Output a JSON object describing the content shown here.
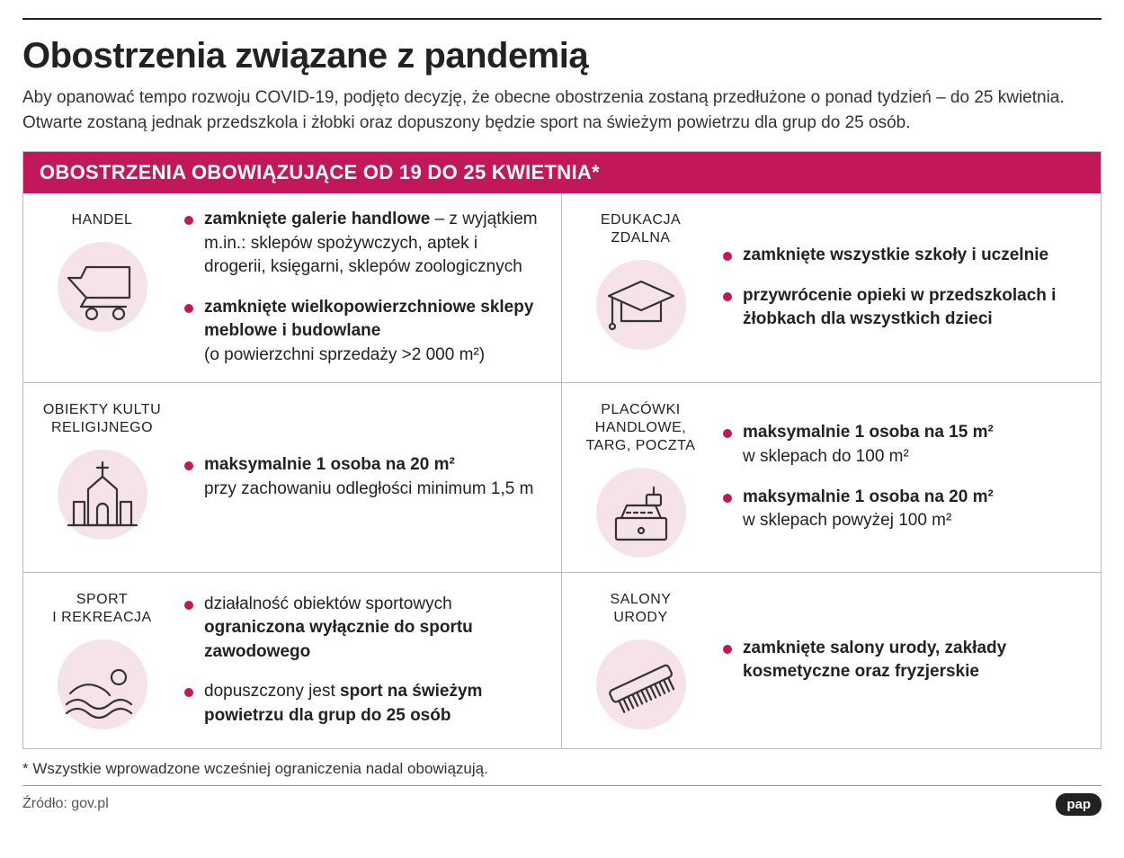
{
  "colors": {
    "accent": "#c2185b",
    "icon_bg": "#f6e3ea",
    "icon_stroke": "#333333",
    "text": "#222222"
  },
  "title": "Obostrzenia związane z pandemią",
  "intro": "Aby opanować tempo rozwoju COVID-19, podjęto decyzję, że obecne obostrzenia zostaną przedłużone o ponad tydzień – do 25 kwietnia. Otwarte zostaną jednak przedszkola i żłobki oraz dopuszony będzie sport na świeżym powietrzu dla grup do 25 osób.",
  "panel_header": "OBOSTRZENIA OBOWIĄZUJĄCE OD 19 DO 25 KWIETNIA*",
  "categories": [
    {
      "id": "handel",
      "label": "HANDEL",
      "icon": "cart",
      "bullets": [
        {
          "bold": "zamknięte galerie handlowe",
          "rest": " – z wyjątkiem m.in.: sklepów spożywczych, aptek i drogerii, księgarni, sklepów zoologicznych"
        },
        {
          "bold": "zamknięte wielkopowierzchniowe sklepy meblowe i budowlane",
          "rest_below": "(o powierzchni sprzedaży >2 000 m²)"
        }
      ]
    },
    {
      "id": "edukacja",
      "label": "EDUKACJA\nZDALNA",
      "icon": "education-cap",
      "bullets": [
        {
          "bold": "zamknięte wszystkie szkoły i uczelnie"
        },
        {
          "bold": "przywrócenie opieki w przedszkolach i żłobkach dla wszystkich dzieci"
        }
      ]
    },
    {
      "id": "kult",
      "label": "OBIEKTY KULTU\nRELIGIJNEGO",
      "icon": "church",
      "bullets": [
        {
          "bold": "maksymalnie 1 osoba na 20 m²",
          "rest_below": "przy zachowaniu odległości minimum 1,5 m"
        }
      ]
    },
    {
      "id": "placowki",
      "label": "PLACÓWKI\nHANDLOWE,\nTARG, POCZTA",
      "icon": "cash-register",
      "bullets": [
        {
          "bold": "maksymalnie 1 osoba na 15 m²",
          "rest_below": "w sklepach do 100 m²"
        },
        {
          "bold": "maksymalnie 1 osoba na 20 m²",
          "rest_below": "w sklepach powyżej 100 m²"
        }
      ]
    },
    {
      "id": "sport",
      "label": "SPORT\nI REKREACJA",
      "icon": "swimmer",
      "bullets": [
        {
          "plain_then_bold": [
            "działalność obiektów sportowych ",
            "ograniczona wyłącznie do sportu zawodowego"
          ]
        },
        {
          "plain_then_bold": [
            "dopuszczony jest ",
            "sport na świeżym powietrzu dla grup do 25 osób"
          ]
        }
      ]
    },
    {
      "id": "salony",
      "label": "SALONY\nURODY",
      "icon": "comb",
      "bullets": [
        {
          "bold": "zamknięte salony urody, zakłady kosmetyczne oraz fryzjerskie"
        }
      ]
    }
  ],
  "footnote": "* Wszystkie wprowadzone wcześniej ograniczenia nadal obowiązują.",
  "source": "Źródło: gov.pl",
  "logo": "pap"
}
